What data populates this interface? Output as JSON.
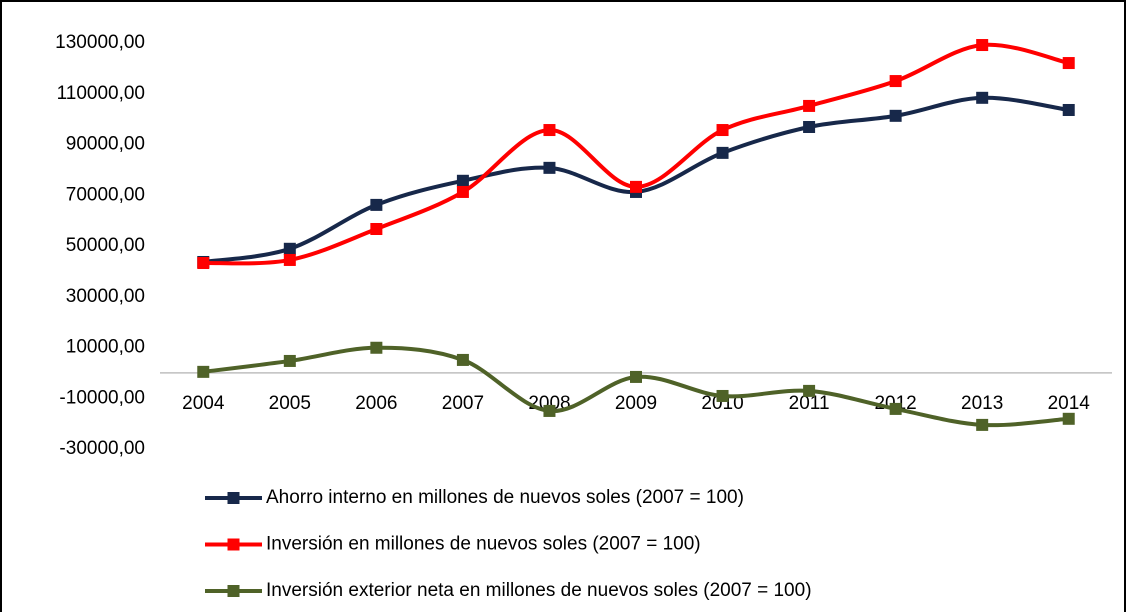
{
  "chart_data": {
    "type": "line",
    "categories": [
      "2004",
      "2005",
      "2006",
      "2007",
      "2008",
      "2009",
      "2010",
      "2011",
      "2012",
      "2013",
      "2014"
    ],
    "series": [
      {
        "name": "Ahorro interno en millones de nuevos soles (2007 = 100)",
        "color": "#17284a",
        "values": [
          43700,
          48900,
          66200,
          75700,
          80800,
          71300,
          86700,
          96900,
          101300,
          108400,
          103600
        ]
      },
      {
        "name": "Inversión en millones de nuevos soles (2007 = 100)",
        "color": "#ff0000",
        "values": [
          43300,
          44500,
          56700,
          71300,
          95700,
          73300,
          95700,
          105200,
          115000,
          129200,
          122100
        ]
      },
      {
        "name": "Inversión exterior neta en millones de nuevos soles (2007 = 100)",
        "color": "#4f6228",
        "values": [
          400,
          4700,
          9900,
          5100,
          -15000,
          -1600,
          -9100,
          -7100,
          -14200,
          -20500,
          -18100
        ]
      }
    ],
    "ylim": [
      -30000,
      130000
    ],
    "yticks": [
      {
        "value": 130000,
        "label": "130000,00"
      },
      {
        "value": 110000,
        "label": "110000,00"
      },
      {
        "value": 90000,
        "label": "90000,00"
      },
      {
        "value": 70000,
        "label": "70000,00"
      },
      {
        "value": 50000,
        "label": "50000,00"
      },
      {
        "value": 30000,
        "label": "30000,00"
      },
      {
        "value": 10000,
        "label": "10000,00"
      },
      {
        "value": -10000,
        "label": "-10000,00"
      },
      {
        "value": -30000,
        "label": "-30000,00"
      }
    ],
    "grid": false,
    "legend": "bottom"
  }
}
